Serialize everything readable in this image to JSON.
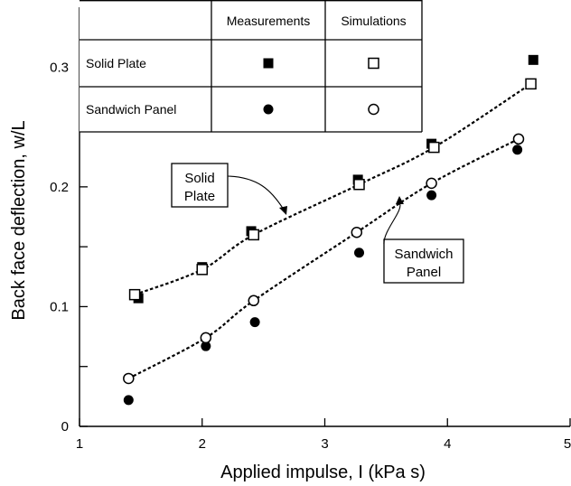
{
  "chart_data": {
    "type": "scatter",
    "xlabel": "Applied impulse, I (kPa s)",
    "ylabel": "Back face deflection, w/L",
    "xlim": [
      1,
      5
    ],
    "ylim": [
      0,
      0.35
    ],
    "x_ticks": [
      1,
      2,
      3,
      4,
      5
    ],
    "y_ticks": [
      0,
      0.05,
      0.1,
      0.15,
      0.2,
      0.25,
      0.3,
      0.35
    ],
    "y_tick_labels": [
      "0",
      "",
      "0.1",
      "",
      "0.2",
      "",
      "0.3",
      ""
    ],
    "grid": false,
    "legend": {
      "placement": "top-left",
      "columns": [
        "Measurements",
        "Simulations"
      ],
      "rows": [
        "Solid Plate",
        "Sandwich Panel"
      ]
    },
    "series": [
      {
        "group": "Solid Plate",
        "kind": "Measurements",
        "marker": "filled-square",
        "x": [
          1.48,
          2.0,
          2.4,
          3.27,
          3.87,
          4.7
        ],
        "y": [
          0.107,
          0.133,
          0.163,
          0.206,
          0.236,
          0.306
        ]
      },
      {
        "group": "Solid Plate",
        "kind": "Simulations",
        "marker": "open-square",
        "x": [
          1.45,
          2.0,
          2.42,
          3.28,
          3.89,
          4.68
        ],
        "y": [
          0.11,
          0.131,
          0.16,
          0.202,
          0.233,
          0.286
        ]
      },
      {
        "group": "Sandwich Panel",
        "kind": "Measurements",
        "marker": "filled-circle",
        "x": [
          1.4,
          2.03,
          2.43,
          3.28,
          3.87,
          4.57
        ],
        "y": [
          0.022,
          0.067,
          0.087,
          0.145,
          0.193,
          0.231
        ]
      },
      {
        "group": "Sandwich Panel",
        "kind": "Simulations",
        "marker": "open-circle",
        "x": [
          1.4,
          2.03,
          2.42,
          3.26,
          3.87,
          4.58
        ],
        "y": [
          0.04,
          0.074,
          0.105,
          0.162,
          0.203,
          0.24
        ]
      }
    ],
    "fit_lines": [
      {
        "group": "Solid Plate",
        "style": "dashed",
        "x": [
          1.45,
          2.0,
          2.42,
          3.28,
          3.89,
          4.68
        ],
        "y": [
          0.11,
          0.131,
          0.16,
          0.202,
          0.233,
          0.286
        ]
      },
      {
        "group": "Sandwich Panel",
        "style": "dashed",
        "x": [
          1.4,
          2.03,
          2.42,
          3.26,
          3.87,
          4.58
        ],
        "y": [
          0.04,
          0.074,
          0.105,
          0.162,
          0.203,
          0.24
        ]
      }
    ],
    "annotations": [
      {
        "lines": [
          "Solid",
          "Plate"
        ],
        "points_to": "Solid Plate",
        "target": [
          2.7,
          0.176
        ]
      },
      {
        "lines": [
          "Sandwich",
          "Panel"
        ],
        "points_to": "Sandwich Panel",
        "target": [
          3.65,
          0.181
        ]
      }
    ]
  }
}
